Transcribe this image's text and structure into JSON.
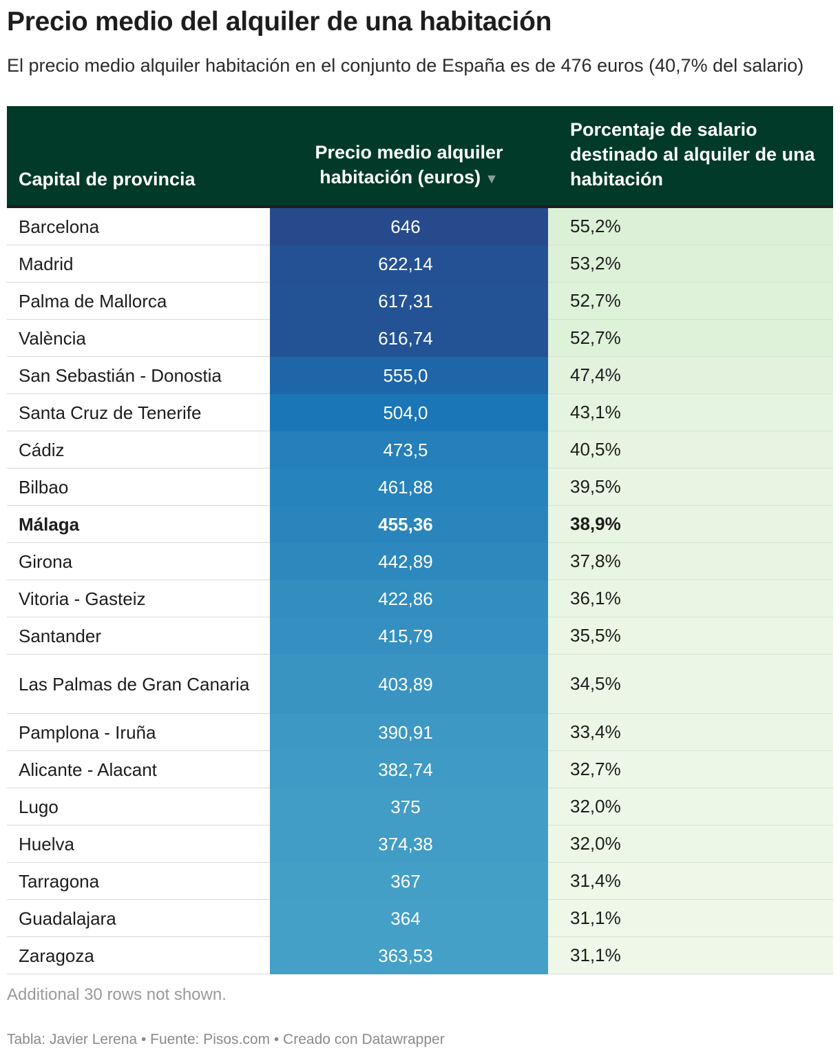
{
  "title": "Precio medio del alquiler de una habitación",
  "subtitle": "El precio medio alquiler habitación en el conjunto de España es de 476 euros (40,7% del salario)",
  "header": {
    "col1": "Capital de provincia",
    "col2": "Precio medio alquiler habitación (euros)",
    "col2_sort_icon": "▼",
    "col3": "Porcentaje de salario destinado al alquiler de una habitación"
  },
  "colors": {
    "header_bg": "#013a28",
    "price_dark": "#264a8c",
    "price_mid": "#1a76b6",
    "price_light": "#45a0c7",
    "pct_dark": "#dcf0d7",
    "pct_light": "#eef7e8"
  },
  "chart_data": {
    "type": "table",
    "title": "Precio medio del alquiler de una habitación",
    "columns": [
      "Capital de provincia",
      "Precio medio alquiler habitación (euros)",
      "Porcentaje de salario destinado al alquiler de una habitación"
    ],
    "rows": [
      {
        "city": "Barcelona",
        "price": "646",
        "pct": "55,2%",
        "price_value": 646,
        "pct_value": 55.2
      },
      {
        "city": "Madrid",
        "price": "622,14",
        "pct": "53,2%",
        "price_value": 622.14,
        "pct_value": 53.2
      },
      {
        "city": "Palma de Mallorca",
        "price": "617,31",
        "pct": "52,7%",
        "price_value": 617.31,
        "pct_value": 52.7
      },
      {
        "city": "València",
        "price": "616,74",
        "pct": "52,7%",
        "price_value": 616.74,
        "pct_value": 52.7
      },
      {
        "city": "San Sebastián - Donostia",
        "price": "555,0",
        "pct": "47,4%",
        "price_value": 555.0,
        "pct_value": 47.4
      },
      {
        "city": "Santa Cruz de Tenerife",
        "price": "504,0",
        "pct": "43,1%",
        "price_value": 504.0,
        "pct_value": 43.1
      },
      {
        "city": "Cádiz",
        "price": "473,5",
        "pct": "40,5%",
        "price_value": 473.5,
        "pct_value": 40.5
      },
      {
        "city": "Bilbao",
        "price": "461,88",
        "pct": "39,5%",
        "price_value": 461.88,
        "pct_value": 39.5
      },
      {
        "city": "Málaga",
        "price": "455,36",
        "pct": "38,9%",
        "price_value": 455.36,
        "pct_value": 38.9,
        "bold": true
      },
      {
        "city": "Girona",
        "price": "442,89",
        "pct": "37,8%",
        "price_value": 442.89,
        "pct_value": 37.8
      },
      {
        "city": "Vitoria - Gasteiz",
        "price": "422,86",
        "pct": "36,1%",
        "price_value": 422.86,
        "pct_value": 36.1
      },
      {
        "city": "Santander",
        "price": "415,79",
        "pct": "35,5%",
        "price_value": 415.79,
        "pct_value": 35.5
      },
      {
        "city": "Las Palmas de Gran Canaria",
        "price": "403,89",
        "pct": "34,5%",
        "price_value": 403.89,
        "pct_value": 34.5,
        "wrap": true
      },
      {
        "city": "Pamplona - Iruña",
        "price": "390,91",
        "pct": "33,4%",
        "price_value": 390.91,
        "pct_value": 33.4
      },
      {
        "city": "Alicante - Alacant",
        "price": "382,74",
        "pct": "32,7%",
        "price_value": 382.74,
        "pct_value": 32.7
      },
      {
        "city": "Lugo",
        "price": "375",
        "pct": "32,0%",
        "price_value": 375,
        "pct_value": 32.0
      },
      {
        "city": "Huelva",
        "price": "374,38",
        "pct": "32,0%",
        "price_value": 374.38,
        "pct_value": 32.0
      },
      {
        "city": "Tarragona",
        "price": "367",
        "pct": "31,4%",
        "price_value": 367,
        "pct_value": 31.4
      },
      {
        "city": "Guadalajara",
        "price": "364",
        "pct": "31,1%",
        "price_value": 364,
        "pct_value": 31.1
      },
      {
        "city": "Zaragoza",
        "price": "363,53",
        "pct": "31,1%",
        "price_value": 363.53,
        "pct_value": 31.1
      }
    ]
  },
  "notshown": "Additional 30 rows not shown.",
  "footer": "Tabla: Javier Lerena • Fuente: Pisos.com • Creado con Datawrapper"
}
